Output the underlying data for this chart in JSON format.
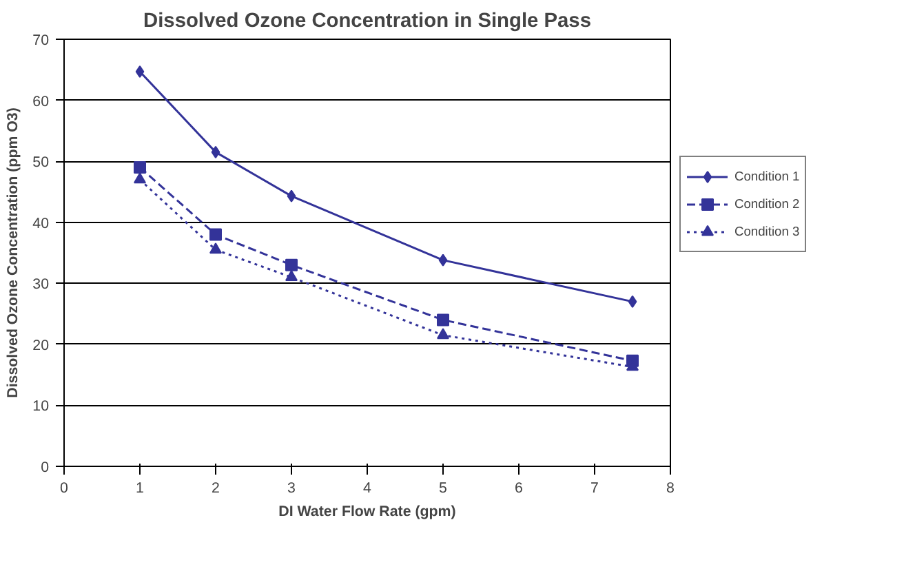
{
  "chart_data": {
    "type": "line",
    "title": "Dissolved Ozone Concentration in Single Pass",
    "xlabel": "DI Water Flow Rate (gpm)",
    "ylabel": "Dissolved Ozone Concentration (ppm O3)",
    "x": [
      1,
      2,
      3,
      5,
      7.5
    ],
    "series": [
      {
        "name": "Condition 1",
        "color": "#333399",
        "values": [
          64.7,
          51.5,
          44.3,
          33.8,
          27
        ],
        "marker": "diamond",
        "line_style": "solid"
      },
      {
        "name": "Condition 2",
        "color": "#333399",
        "values": [
          49,
          38,
          33,
          24,
          17.3
        ],
        "marker": "square",
        "line_style": "dashed"
      },
      {
        "name": "Condition 3",
        "color": "#333399",
        "values": [
          47,
          35.5,
          31,
          21.5,
          16.3
        ],
        "marker": "triangle",
        "line_style": "dotted"
      }
    ],
    "xlim": [
      0,
      8
    ],
    "xticks": [
      0,
      1,
      2,
      3,
      4,
      5,
      6,
      7,
      8
    ],
    "ylim": [
      0,
      70
    ],
    "yticks": [
      0,
      10,
      20,
      30,
      40,
      50,
      60,
      70
    ],
    "grid": "y",
    "legend": "right"
  }
}
